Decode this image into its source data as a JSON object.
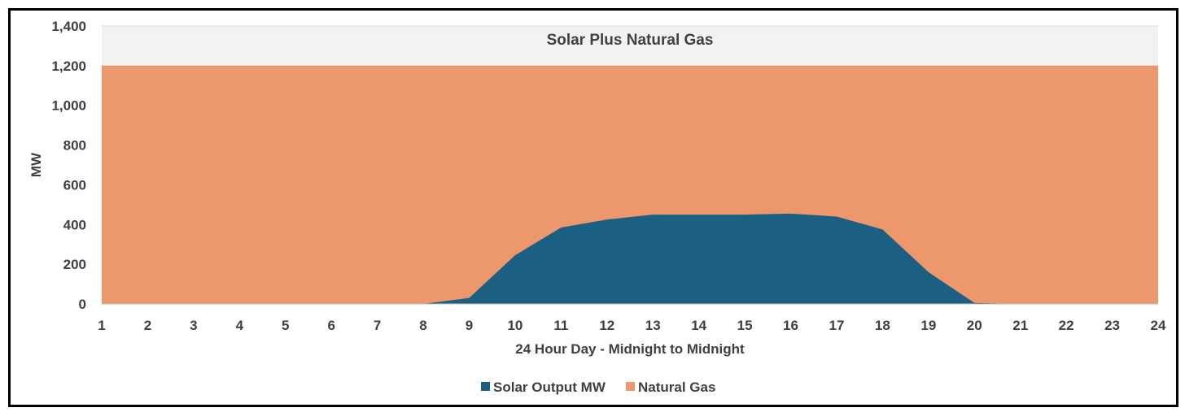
{
  "chart_data": {
    "type": "area",
    "title": "Solar Plus Natural Gas",
    "xlabel": "24 Hour Day - Midnight to Midnight",
    "ylabel": "MW",
    "x": [
      1,
      2,
      3,
      4,
      5,
      6,
      7,
      8,
      9,
      10,
      11,
      12,
      13,
      14,
      15,
      16,
      17,
      18,
      19,
      20,
      21,
      22,
      23,
      24
    ],
    "ylim": [
      0,
      1400
    ],
    "yticks": [
      0,
      200,
      400,
      600,
      800,
      1000,
      1200,
      1400
    ],
    "ytick_labels": [
      "0",
      "200",
      "400",
      "600",
      "800",
      "1,000",
      "1,200",
      "1,400"
    ],
    "grid": true,
    "legend_position": "bottom",
    "series": [
      {
        "name": "Solar Output MW",
        "color": "#1b6083",
        "values": [
          0,
          0,
          0,
          0,
          0,
          0,
          0,
          0,
          30,
          245,
          385,
          425,
          450,
          450,
          450,
          455,
          440,
          375,
          160,
          5,
          0,
          0,
          0,
          0
        ]
      },
      {
        "name": "Natural Gas",
        "color": "#ec976c",
        "values": [
          1200,
          1200,
          1200,
          1200,
          1200,
          1200,
          1200,
          1200,
          1200,
          1200,
          1200,
          1200,
          1200,
          1200,
          1200,
          1200,
          1200,
          1200,
          1200,
          1200,
          1200,
          1200,
          1200,
          1200
        ]
      }
    ]
  }
}
